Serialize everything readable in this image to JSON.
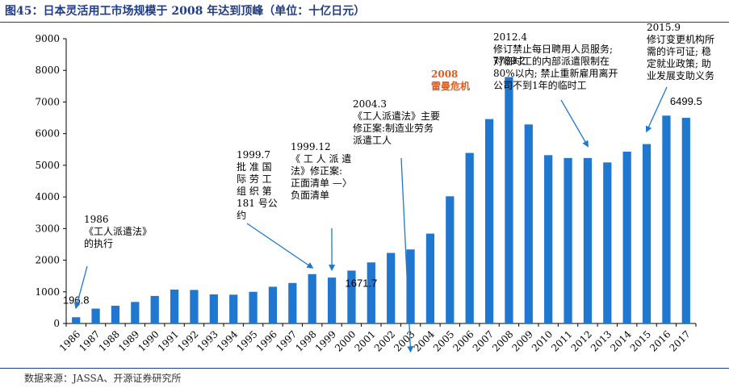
{
  "header": {
    "title": "图45：日本灵活用工市场规模于 2008 年达到顶峰（单位：十亿日元）"
  },
  "footer": {
    "source": "数据来源：JASSA、开源证券研究所"
  },
  "colors": {
    "bar": "#1f77d0",
    "accent": "#e2591b",
    "title": "#1f3c88"
  },
  "chart_data": {
    "type": "bar",
    "title": "",
    "xlabel": "",
    "ylabel": "",
    "ylim": [
      0,
      9000
    ],
    "yticks": [
      0,
      1000,
      2000,
      3000,
      4000,
      5000,
      6000,
      7000,
      8000,
      9000
    ],
    "grid": false,
    "categories": [
      "1986",
      "1987",
      "1988",
      "1989",
      "1990",
      "1991",
      "1992",
      "1993",
      "1994",
      "1995",
      "1996",
      "1997",
      "1998",
      "1999",
      "2000",
      "2001",
      "2002",
      "2003",
      "2004",
      "2005",
      "2006",
      "2007",
      "2008",
      "2009",
      "2010",
      "2011",
      "2012",
      "2013",
      "2014",
      "2015",
      "2016",
      "2017"
    ],
    "values": [
      196.8,
      470,
      560,
      680,
      870,
      1070,
      1060,
      920,
      910,
      1000,
      1160,
      1280,
      1560,
      1450,
      1671.7,
      1930,
      2230,
      2340,
      2840,
      4020,
      5390,
      6460,
      7789.2,
      6290,
      5320,
      5230,
      5230,
      5090,
      5430,
      5670,
      6570,
      6499.5
    ],
    "data_labels": [
      {
        "category": "1986",
        "text": "196.8"
      },
      {
        "category": "2000",
        "text": "1671.7"
      },
      {
        "category": "2008",
        "text": "7789.2"
      },
      {
        "category": "2017",
        "text": "6499.5"
      }
    ],
    "annotations": [
      {
        "id": "a1986",
        "lines": [
          "1986",
          "《工人派遣法》",
          "的执行"
        ],
        "target": "1986"
      },
      {
        "id": "a1997",
        "lines": [
          "1999.7",
          "批 准 国",
          "际 劳 工",
          "组 织 第",
          "181 号公",
          "约"
        ],
        "target": "1998"
      },
      {
        "id": "a1999",
        "lines": [
          "1999.12",
          "《 工 人 派 遣",
          "法》修正案:",
          "正面清单 —〉",
          "负面清单"
        ],
        "target": "1999"
      },
      {
        "id": "a2004",
        "lines": [
          "2004.3",
          "《工人派遣法》主要",
          "修正案:制造业劳务",
          "派遣工人"
        ],
        "target": "2003"
      },
      {
        "id": "a2008",
        "lines": [
          "2008",
          "雷曼危机"
        ],
        "target": "2008",
        "highlight": true
      },
      {
        "id": "a2012",
        "lines": [
          "2012.4",
          "修订禁止每日聘用人员服务;",
          "对临时工的内部派遣限制在",
          "80%以内; 禁止重新雇用离开",
          "公司不到1年的临时工"
        ],
        "target": "2012"
      },
      {
        "id": "a2015",
        "lines": [
          "2015.9",
          "修订变更机构所",
          "需的许可证; 稳",
          "定就业政策; 助",
          "业发展支助义务"
        ],
        "target": "2015"
      }
    ]
  }
}
